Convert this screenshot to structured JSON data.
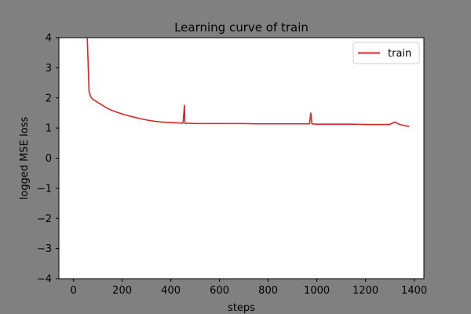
{
  "chart_data": {
    "type": "line",
    "title": "Learning curve of train",
    "xlabel": "steps",
    "ylabel": "logged MSE loss",
    "xlim": [
      -60,
      1440
    ],
    "ylim": [
      -4,
      4
    ],
    "xticks": [
      0,
      200,
      400,
      600,
      800,
      1000,
      1200,
      1400
    ],
    "yticks": [
      -4,
      -3,
      -2,
      -1,
      0,
      1,
      2,
      3,
      4
    ],
    "xtick_labels": [
      "0",
      "200",
      "400",
      "600",
      "800",
      "1000",
      "1200",
      "1400"
    ],
    "ytick_labels": [
      "−4",
      "−3",
      "−2",
      "−1",
      "0",
      "1",
      "2",
      "3",
      "4"
    ],
    "legend_position": "upper right",
    "grid": false,
    "series": [
      {
        "name": "train",
        "color": "#d62728",
        "x": [
          50,
          55,
          60,
          64,
          66,
          70,
          75,
          80,
          90,
          100,
          120,
          140,
          160,
          180,
          200,
          220,
          250,
          280,
          300,
          330,
          360,
          400,
          430,
          450,
          456,
          458,
          460,
          470,
          500,
          530,
          560,
          600,
          650,
          700,
          750,
          800,
          850,
          900,
          950,
          970,
          975,
          980,
          1000,
          1050,
          1100,
          1150,
          1200,
          1250,
          1300,
          1320,
          1340,
          1380
        ],
        "y": [
          5.0,
          4.4,
          3.2,
          2.2,
          2.15,
          2.05,
          2.0,
          1.95,
          1.9,
          1.85,
          1.75,
          1.65,
          1.58,
          1.52,
          1.47,
          1.42,
          1.36,
          1.3,
          1.27,
          1.23,
          1.2,
          1.18,
          1.17,
          1.16,
          1.75,
          1.16,
          1.15,
          1.16,
          1.15,
          1.15,
          1.15,
          1.15,
          1.15,
          1.15,
          1.14,
          1.14,
          1.14,
          1.14,
          1.14,
          1.14,
          1.5,
          1.14,
          1.13,
          1.13,
          1.13,
          1.13,
          1.12,
          1.12,
          1.12,
          1.2,
          1.12,
          1.05
        ]
      }
    ]
  }
}
